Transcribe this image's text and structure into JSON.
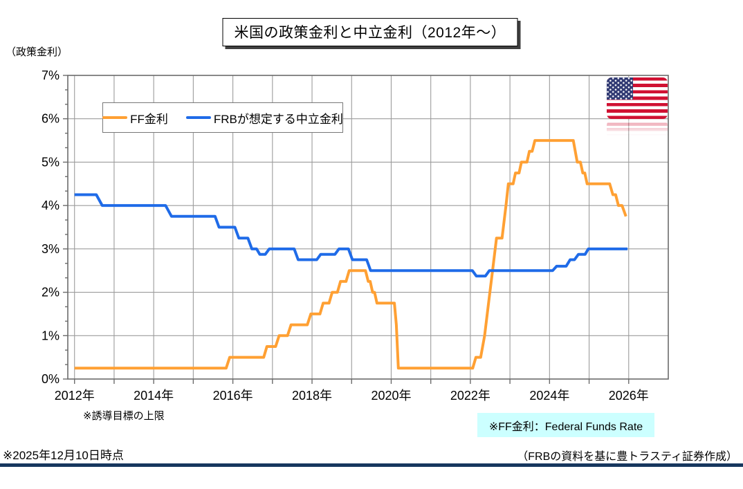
{
  "header": {
    "title": "米国の政策金利と中立金利（2012年～）",
    "y_axis_unit_label": "（政策金利）"
  },
  "chart_data": {
    "type": "line",
    "title": "米国の政策金利と中立金利（2012年～）",
    "xlabel": "",
    "ylabel": "政策金利",
    "x_range": [
      2011.83,
      2027.0
    ],
    "ylim": [
      0,
      7
    ],
    "grid": true,
    "legend_position": "inside-top-left",
    "y_tick_labels": [
      "0%",
      "1%",
      "2%",
      "3%",
      "4%",
      "5%",
      "6%",
      "7%"
    ],
    "x_grid_years": [
      2012,
      2013,
      2014,
      2015,
      2016,
      2017,
      2018,
      2019,
      2020,
      2021,
      2022,
      2023,
      2024,
      2025,
      2026
    ],
    "x_ticks": [
      {
        "year": 2012,
        "label": "2012年"
      },
      {
        "year": 2014,
        "label": "2014年"
      },
      {
        "year": 2016,
        "label": "2016年"
      },
      {
        "year": 2018,
        "label": "2018年"
      },
      {
        "year": 2020,
        "label": "2020年"
      },
      {
        "year": 2022,
        "label": "2022年"
      },
      {
        "year": 2024,
        "label": "2024年"
      },
      {
        "year": 2026,
        "label": "2026年"
      }
    ],
    "series": [
      {
        "name": "FF金利",
        "color": "#FFA033",
        "points": [
          [
            2012.0,
            0.25
          ],
          [
            2015.83,
            0.25
          ],
          [
            2015.92,
            0.5
          ],
          [
            2016.78,
            0.5
          ],
          [
            2016.86,
            0.75
          ],
          [
            2017.08,
            0.75
          ],
          [
            2017.17,
            1.0
          ],
          [
            2017.38,
            1.0
          ],
          [
            2017.47,
            1.25
          ],
          [
            2017.88,
            1.25
          ],
          [
            2017.97,
            1.5
          ],
          [
            2018.2,
            1.5
          ],
          [
            2018.28,
            1.75
          ],
          [
            2018.43,
            1.75
          ],
          [
            2018.51,
            2.0
          ],
          [
            2018.64,
            2.0
          ],
          [
            2018.72,
            2.25
          ],
          [
            2018.86,
            2.25
          ],
          [
            2018.94,
            2.5
          ],
          [
            2019.35,
            2.5
          ],
          [
            2019.42,
            2.25
          ],
          [
            2019.47,
            2.25
          ],
          [
            2019.53,
            2.0
          ],
          [
            2019.58,
            2.0
          ],
          [
            2019.64,
            1.75
          ],
          [
            2020.08,
            1.75
          ],
          [
            2020.13,
            1.25
          ],
          [
            2020.18,
            0.25
          ],
          [
            2022.06,
            0.25
          ],
          [
            2022.14,
            0.5
          ],
          [
            2022.26,
            0.5
          ],
          [
            2022.36,
            1.0
          ],
          [
            2022.46,
            1.75
          ],
          [
            2022.56,
            2.5
          ],
          [
            2022.66,
            3.25
          ],
          [
            2022.8,
            3.25
          ],
          [
            2022.9,
            4.0
          ],
          [
            2022.96,
            4.5
          ],
          [
            2023.08,
            4.5
          ],
          [
            2023.14,
            4.75
          ],
          [
            2023.23,
            4.75
          ],
          [
            2023.29,
            5.0
          ],
          [
            2023.43,
            5.0
          ],
          [
            2023.49,
            5.25
          ],
          [
            2023.56,
            5.25
          ],
          [
            2023.63,
            5.5
          ],
          [
            2024.6,
            5.5
          ],
          [
            2024.7,
            5.0
          ],
          [
            2024.78,
            5.0
          ],
          [
            2024.84,
            4.75
          ],
          [
            2024.89,
            4.75
          ],
          [
            2024.95,
            4.5
          ],
          [
            2025.52,
            4.5
          ],
          [
            2025.6,
            4.25
          ],
          [
            2025.67,
            4.25
          ],
          [
            2025.74,
            4.0
          ],
          [
            2025.83,
            4.0
          ],
          [
            2025.93,
            3.75
          ]
        ]
      },
      {
        "name": "FRBが想定する中立金利",
        "color": "#1F6BE8",
        "points": [
          [
            2012.0,
            4.25
          ],
          [
            2012.55,
            4.25
          ],
          [
            2012.7,
            4.0
          ],
          [
            2014.3,
            4.0
          ],
          [
            2014.45,
            3.75
          ],
          [
            2015.55,
            3.75
          ],
          [
            2015.65,
            3.5
          ],
          [
            2016.05,
            3.5
          ],
          [
            2016.15,
            3.25
          ],
          [
            2016.38,
            3.25
          ],
          [
            2016.48,
            3.0
          ],
          [
            2016.6,
            3.0
          ],
          [
            2016.68,
            2.875
          ],
          [
            2016.82,
            2.875
          ],
          [
            2016.92,
            3.0
          ],
          [
            2017.55,
            3.0
          ],
          [
            2017.65,
            2.75
          ],
          [
            2018.12,
            2.75
          ],
          [
            2018.22,
            2.875
          ],
          [
            2018.58,
            2.875
          ],
          [
            2018.68,
            3.0
          ],
          [
            2018.92,
            3.0
          ],
          [
            2019.02,
            2.75
          ],
          [
            2019.38,
            2.75
          ],
          [
            2019.48,
            2.5
          ],
          [
            2022.05,
            2.5
          ],
          [
            2022.15,
            2.375
          ],
          [
            2022.38,
            2.375
          ],
          [
            2022.48,
            2.5
          ],
          [
            2024.08,
            2.5
          ],
          [
            2024.18,
            2.6
          ],
          [
            2024.42,
            2.6
          ],
          [
            2024.52,
            2.75
          ],
          [
            2024.63,
            2.75
          ],
          [
            2024.73,
            2.875
          ],
          [
            2024.9,
            2.875
          ],
          [
            2024.98,
            3.0
          ],
          [
            2025.97,
            3.0
          ]
        ]
      }
    ]
  },
  "notes": {
    "target_note": "※誘導目標の上限",
    "ff_note": "※FF金利：Federal Funds Rate"
  },
  "footer": {
    "as_of": "※2025年12月10日時点",
    "credit": "（FRBの資料を基に豊トラスティ証券作成）"
  },
  "colors": {
    "ff_line": "#FFA033",
    "neutral_line": "#1F6BE8",
    "note_bg": "#CCFFFF",
    "divider": "#17375E",
    "gridline": "#9B9B9B",
    "axis": "#6B6B6B"
  }
}
